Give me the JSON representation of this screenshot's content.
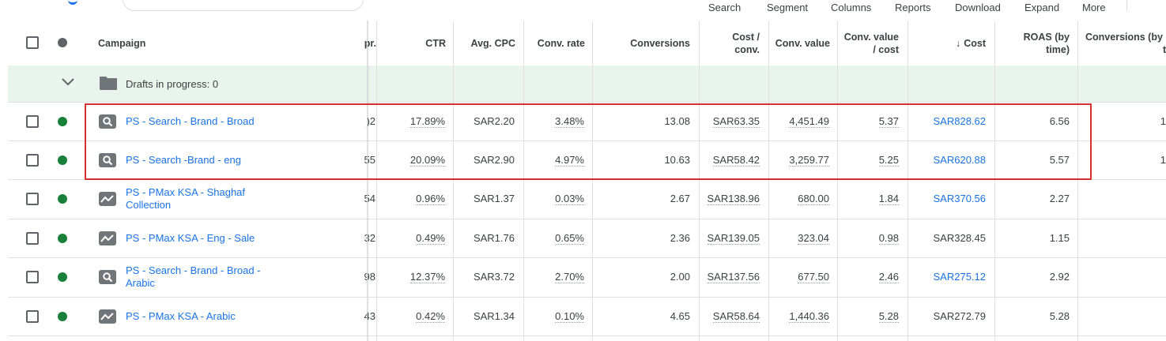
{
  "toolbar": {
    "search_label": "Search",
    "segment_label": "Segment",
    "columns_label": "Columns",
    "reports_label": "Reports",
    "download_label": "Download",
    "expand_label": "Expand",
    "more_label": "More"
  },
  "header": {
    "campaign": "Campaign",
    "impr_partial": "pr.",
    "ctr": "CTR",
    "avg_cpc": "Avg. CPC",
    "conv_rate": "Conv. rate",
    "conversions": "Conversions",
    "cost_conv_1": "Cost /",
    "cost_conv_2": "conv.",
    "conv_value": "Conv. value",
    "conv_value_cost_1": "Conv. value",
    "conv_value_cost_2": "/ cost",
    "cost_arrow": "↓",
    "cost": "Cost",
    "roas_1": "ROAS (by",
    "roas_2": "time)",
    "conv_by_time_1": "Conversions (by c",
    "conv_by_time_2": "t"
  },
  "drafts": {
    "label": "Drafts in progress: 0"
  },
  "rows": [
    {
      "name_1": "PS - Search - Brand - Broad",
      "name_2": "",
      "type": "search",
      "impr": ")2",
      "ctr": "17.89%",
      "cpc": "SAR2.20",
      "conv_rate": "3.48%",
      "conversions": "13.08",
      "cost_conv": "SAR63.35",
      "conv_value": "4,451.49",
      "value_cost": "5.37",
      "cost": "SAR828.62",
      "cost_link": true,
      "roas": "6.56",
      "conv_time": "1"
    },
    {
      "name_1": "PS - Search -Brand - eng",
      "name_2": "",
      "type": "search",
      "impr": "55",
      "ctr": "20.09%",
      "cpc": "SAR2.90",
      "conv_rate": "4.97%",
      "conversions": "10.63",
      "cost_conv": "SAR58.42",
      "conv_value": "3,259.77",
      "value_cost": "5.25",
      "cost": "SAR620.88",
      "cost_link": true,
      "roas": "5.57",
      "conv_time": "1"
    },
    {
      "name_1": "PS - PMax KSA - Shaghaf",
      "name_2": "Collection",
      "type": "pmax",
      "impr": "54",
      "ctr": "0.96%",
      "cpc": "SAR1.37",
      "conv_rate": "0.03%",
      "conversions": "2.67",
      "cost_conv": "SAR138.96",
      "conv_value": "680.00",
      "value_cost": "1.84",
      "cost": "SAR370.56",
      "cost_link": true,
      "roas": "2.27",
      "conv_time": ""
    },
    {
      "name_1": "PS - PMax KSA - Eng - Sale",
      "name_2": "",
      "type": "pmax",
      "impr": "32",
      "ctr": "0.49%",
      "cpc": "SAR1.76",
      "conv_rate": "0.65%",
      "conversions": "2.36",
      "cost_conv": "SAR139.05",
      "conv_value": "323.04",
      "value_cost": "0.98",
      "cost": "SAR328.45",
      "cost_link": false,
      "roas": "1.15",
      "conv_time": ""
    },
    {
      "name_1": "PS - Search - Brand - Broad -",
      "name_2": "Arabic",
      "type": "search",
      "impr": "98",
      "ctr": "12.37%",
      "cpc": "SAR3.72",
      "conv_rate": "2.70%",
      "conversions": "2.00",
      "cost_conv": "SAR137.56",
      "conv_value": "677.50",
      "value_cost": "2.46",
      "cost": "SAR275.12",
      "cost_link": true,
      "roas": "2.92",
      "conv_time": ""
    },
    {
      "name_1": "PS - PMax KSA - Arabic",
      "name_2": "",
      "type": "pmax",
      "impr": "43",
      "ctr": "0.42%",
      "cpc": "SAR1.34",
      "conv_rate": "0.10%",
      "conversions": "4.65",
      "cost_conv": "SAR58.64",
      "conv_value": "1,440.36",
      "value_cost": "5.28",
      "cost": "SAR272.79",
      "cost_link": false,
      "roas": "5.28",
      "conv_time": ""
    }
  ],
  "colors": {
    "link": "#1a73e8",
    "enabled_dot": "#188038",
    "highlight_border": "#d32f2f",
    "drafts_bg": "#e9f4ec"
  }
}
